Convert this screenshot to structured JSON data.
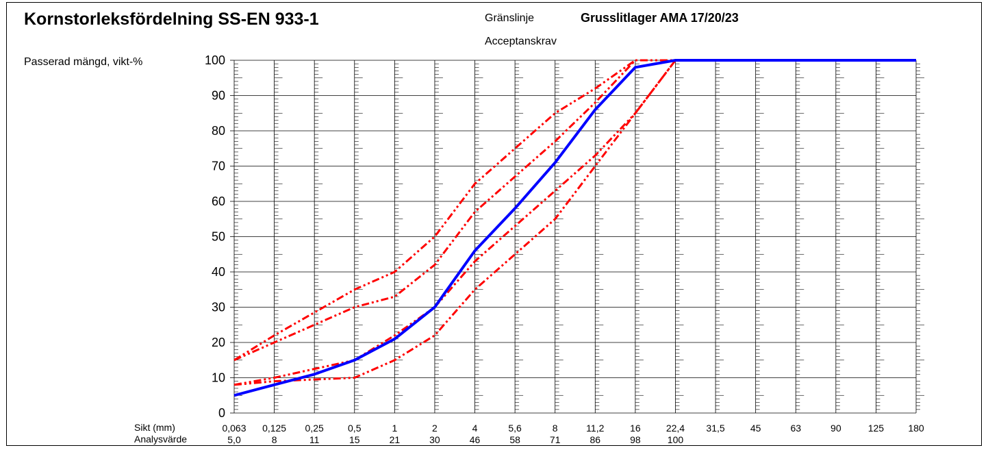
{
  "chart": {
    "title": "Kornstorleksfördelning SS-EN 933-1",
    "limit_label": "Gränslinje",
    "spec_name": "Grusslitlager AMA 17/20/23",
    "acceptance_label": "Acceptanskrav",
    "ylabel": "Passerad mängd, vikt-%",
    "sieve_label": "Sikt (mm)",
    "analysis_label": "Analysvärde"
  },
  "chart_data": {
    "type": "line",
    "title": "Kornstorleksfördelning SS-EN 933-1",
    "xlabel": "Sikt (mm)",
    "ylabel": "Passerad mängd, vikt-%",
    "ylim": [
      0,
      100
    ],
    "yticks": [
      0,
      10,
      20,
      30,
      40,
      50,
      60,
      70,
      80,
      90,
      100
    ],
    "grid": true,
    "sieves": [
      "0,063",
      "0,125",
      "0,25",
      "0,5",
      "1",
      "2",
      "4",
      "5,6",
      "8",
      "11,2",
      "16",
      "22,4",
      "31,5",
      "45",
      "63",
      "90",
      "125",
      "180"
    ],
    "sieve_mm": [
      0.063,
      0.125,
      0.25,
      0.5,
      1,
      2,
      4,
      5.6,
      8,
      11.2,
      16,
      22.4,
      31.5,
      45,
      63,
      90,
      125,
      180
    ],
    "analysis_values": [
      "5,0",
      "8",
      "11",
      "15",
      "21",
      "30",
      "46",
      "58",
      "71",
      "86",
      "98",
      "100"
    ],
    "series": [
      {
        "x": [
          0.063,
          0.125,
          0.25,
          0.5,
          1,
          2,
          4,
          5.6,
          8,
          11.2,
          16,
          22.4,
          31.5,
          45,
          63,
          90,
          125,
          180
        ],
        "values": [
          5.0,
          8,
          11,
          15,
          21,
          30,
          46,
          58,
          71,
          86,
          98,
          100,
          100,
          100,
          100,
          100,
          100,
          100
        ],
        "color": "#0000ff",
        "style": "solid"
      },
      {
        "x": [
          0.063,
          0.125,
          0.5,
          1,
          2,
          4,
          5.6,
          8,
          11.2,
          16
        ],
        "values": [
          15,
          22,
          35,
          40,
          50,
          65,
          75,
          85,
          92,
          100
        ],
        "color": "#ff0000",
        "style": "dash-dot-dot"
      },
      {
        "x": [
          0.063,
          0.125,
          0.5,
          1,
          2,
          4,
          5.6,
          8,
          11.2,
          16,
          22.4
        ],
        "values": [
          15,
          20,
          30,
          33,
          42,
          57,
          67,
          77,
          88,
          100,
          100
        ],
        "color": "#ff0000",
        "style": "dash-dot-dot"
      },
      {
        "x": [
          0.063,
          0.125,
          0.5,
          1,
          2,
          4,
          5.6,
          8,
          11.2,
          16,
          22.4
        ],
        "values": [
          8,
          10,
          15,
          22,
          30,
          43,
          53,
          63,
          73,
          85,
          100
        ],
        "color": "#ff0000",
        "style": "dash-dot-dot"
      },
      {
        "x": [
          0.063,
          0.125,
          0.5,
          1,
          2,
          4,
          5.6,
          8,
          11.2,
          16,
          22.4
        ],
        "values": [
          8,
          9,
          10,
          15,
          22,
          35,
          45,
          55,
          70,
          85,
          100
        ],
        "color": "#ff0000",
        "style": "dash-dot-dot"
      }
    ]
  }
}
